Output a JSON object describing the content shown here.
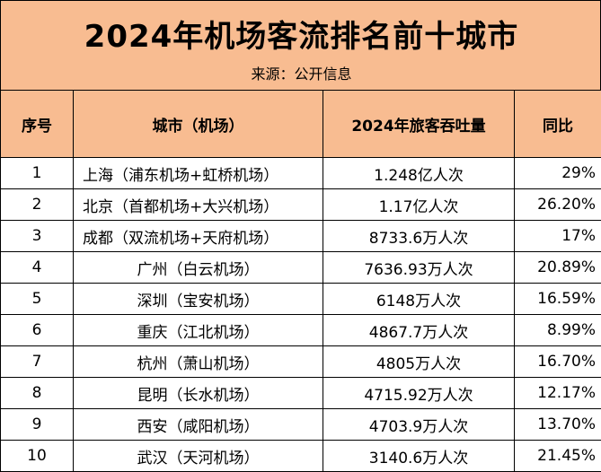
{
  "title": "2024年机场客流排名前十城市",
  "source": "来源：公开信息",
  "colors": {
    "header_bg": "#f8bc91",
    "border": "#000000"
  },
  "table": {
    "headers": [
      "序号",
      "城市（机场）",
      "2024年旅客吞吐量",
      "同比"
    ],
    "rows": [
      {
        "idx": "1",
        "city": "上海（浦东机场+虹桥机场）",
        "pax": "1.248亿人次",
        "yoy": "29%"
      },
      {
        "idx": "2",
        "city": "北京（首都机场+大兴机场）",
        "pax": "1.17亿人次",
        "yoy": "26.20%"
      },
      {
        "idx": "3",
        "city": "成都（双流机场+天府机场）",
        "pax": "8733.6万人次",
        "yoy": "17%"
      },
      {
        "idx": "4",
        "city": "广州（白云机场）",
        "pax": "7636.93万人次",
        "yoy": "20.89%"
      },
      {
        "idx": "5",
        "city": "深圳（宝安机场）",
        "pax": "6148万人次",
        "yoy": "16.59%"
      },
      {
        "idx": "6",
        "city": "重庆（江北机场）",
        "pax": "4867.7万人次",
        "yoy": "8.99%"
      },
      {
        "idx": "7",
        "city": "杭州（萧山机场）",
        "pax": "4805万人次",
        "yoy": "16.70%"
      },
      {
        "idx": "8",
        "city": "昆明（长水机场）",
        "pax": "4715.92万人次",
        "yoy": "12.17%"
      },
      {
        "idx": "9",
        "city": "西安（咸阳机场）",
        "pax": "4703.9万人次",
        "yoy": "13.70%"
      },
      {
        "idx": "10",
        "city": "武汉（天河机场）",
        "pax": "3140.6万人次",
        "yoy": "21.45%"
      }
    ]
  }
}
